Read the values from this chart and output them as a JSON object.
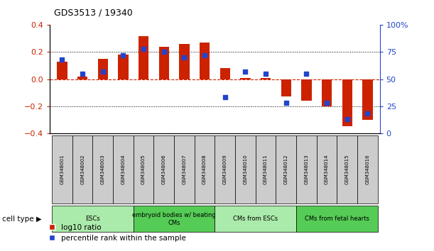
{
  "title": "GDS3513 / 19340",
  "samples": [
    "GSM348001",
    "GSM348002",
    "GSM348003",
    "GSM348004",
    "GSM348005",
    "GSM348006",
    "GSM348007",
    "GSM348008",
    "GSM348009",
    "GSM348010",
    "GSM348011",
    "GSM348012",
    "GSM348013",
    "GSM348014",
    "GSM348015",
    "GSM348016"
  ],
  "log10_ratio": [
    0.13,
    0.02,
    0.15,
    0.18,
    0.32,
    0.24,
    0.26,
    0.27,
    0.08,
    0.01,
    0.01,
    -0.13,
    -0.16,
    -0.2,
    -0.35,
    -0.3
  ],
  "percentile_rank": [
    68,
    55,
    57,
    72,
    78,
    75,
    70,
    72,
    33,
    57,
    55,
    28,
    55,
    28,
    13,
    18
  ],
  "cell_types": [
    {
      "label": "ESCs",
      "start": 0,
      "end": 4,
      "color": "#aaeaaa"
    },
    {
      "label": "embryoid bodies w/ beating\nCMs",
      "start": 4,
      "end": 8,
      "color": "#55cc55"
    },
    {
      "label": "CMs from ESCs",
      "start": 8,
      "end": 12,
      "color": "#aaeaaa"
    },
    {
      "label": "CMs from fetal hearts",
      "start": 12,
      "end": 16,
      "color": "#55cc55"
    }
  ],
  "bar_color": "#cc2200",
  "dot_color": "#2244cc",
  "ylim_left": [
    -0.4,
    0.4
  ],
  "ylim_right": [
    0,
    100
  ],
  "yticks_left": [
    -0.4,
    -0.2,
    0.0,
    0.2,
    0.4
  ],
  "yticks_right": [
    0,
    25,
    50,
    75,
    100
  ],
  "bar_width": 0.5,
  "legend_log10": "log10 ratio",
  "legend_pct": "percentile rank within the sample",
  "cell_type_label": "cell type"
}
